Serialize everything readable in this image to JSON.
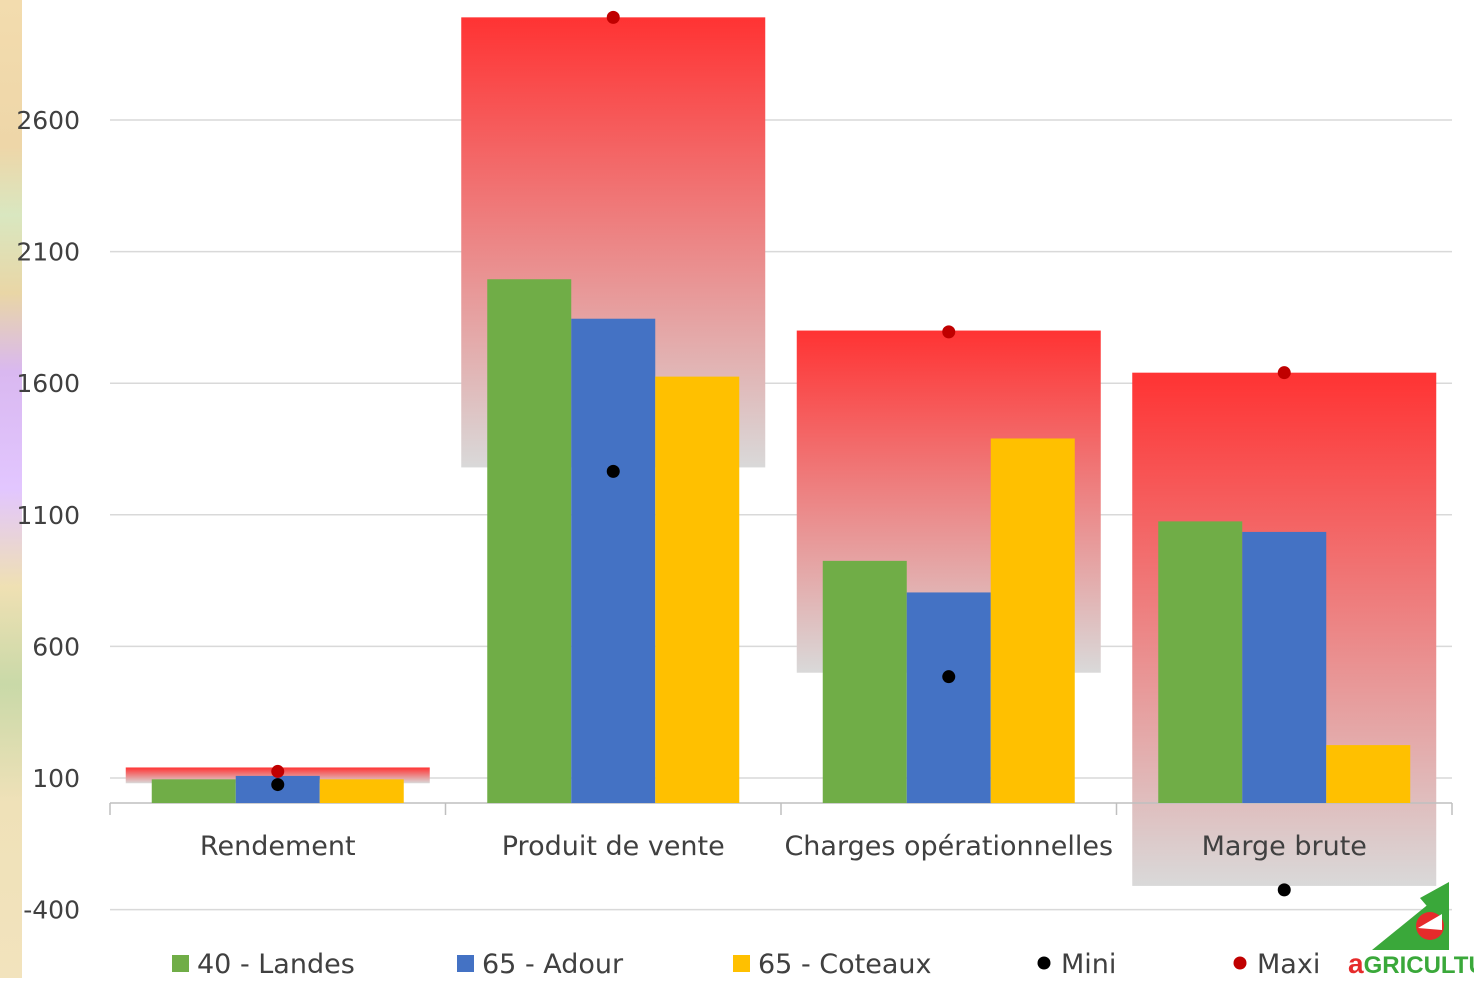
{
  "chart_data": {
    "type": "bar",
    "categories": [
      "Rendement",
      "Produit de vente",
      "Charges opérationnelles",
      "Marge brute"
    ],
    "series": [
      {
        "name": "40 - Landes",
        "color": "#70ad47",
        "values": [
          95,
          1995,
          925,
          1075
        ]
      },
      {
        "name": "65 - Adour",
        "color": "#4472c4",
        "values": [
          108,
          1845,
          805,
          1035
        ]
      },
      {
        "name": "65 - Coteaux",
        "color": "#ffc000",
        "values": [
          95,
          1625,
          1390,
          225
        ]
      }
    ],
    "markers": [
      {
        "name": "Mini",
        "color": "#000000",
        "values": [
          75,
          1265,
          485,
          -325
        ]
      },
      {
        "name": "Maxi",
        "color": "#c00000",
        "values": [
          125,
          2990,
          1795,
          1640
        ]
      }
    ],
    "ranges": {
      "color": "#ff3333",
      "low": [
        80,
        1280,
        500,
        -310
      ],
      "high": [
        140,
        2990,
        1800,
        1640
      ]
    },
    "yticks": [
      -400,
      100,
      600,
      1100,
      1600,
      2100,
      2600
    ],
    "ylim": [
      -400,
      3000
    ],
    "grid": true,
    "legend_position": "bottom"
  },
  "legend": {
    "items": [
      "40 - Landes",
      "65 - Adour",
      "65 - Coteaux",
      "Mini",
      "Maxi"
    ]
  },
  "logo": {
    "text_a": "a",
    "text_rest": "GRICULTURE",
    "icon": "chambre-agriculture-logo"
  }
}
